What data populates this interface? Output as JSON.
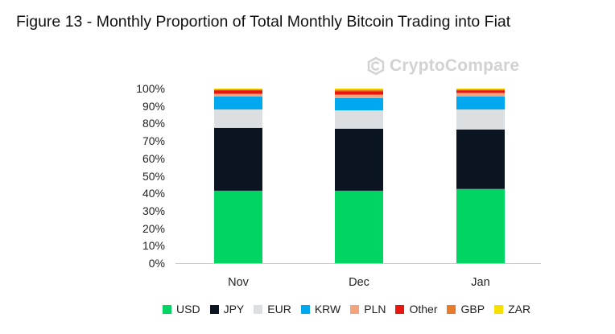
{
  "title": "Figure 13 - Monthly Proportion of Total Monthly Bitcoin Trading into Fiat",
  "watermark": "CryptoCompare",
  "chart_data": {
    "type": "bar",
    "stacked": true,
    "categories": [
      "Nov",
      "Dec",
      "Jan"
    ],
    "series": [
      {
        "name": "USD",
        "color": "#00d563",
        "values": [
          41.5,
          41.5,
          42.5
        ]
      },
      {
        "name": "JPY",
        "color": "#0b1522",
        "values": [
          36.0,
          35.5,
          34.0
        ]
      },
      {
        "name": "EUR",
        "color": "#dcdfe1",
        "values": [
          10.5,
          10.5,
          11.5
        ]
      },
      {
        "name": "KRW",
        "color": "#00a8f0",
        "values": [
          7.5,
          7.0,
          7.5
        ]
      },
      {
        "name": "PLN",
        "color": "#f5a37d",
        "values": [
          1.5,
          2.0,
          2.0
        ]
      },
      {
        "name": "Other",
        "color": "#e8160c",
        "values": [
          2.0,
          2.0,
          1.5
        ]
      },
      {
        "name": "GBP",
        "color": "#e87a2a",
        "values": [
          0.5,
          0.8,
          0.5
        ]
      },
      {
        "name": "ZAR",
        "color": "#f5e000",
        "values": [
          0.5,
          0.7,
          0.5
        ]
      }
    ],
    "yticks": [
      "0%",
      "10%",
      "20%",
      "30%",
      "40%",
      "50%",
      "60%",
      "70%",
      "80%",
      "90%",
      "100%"
    ],
    "ylim": [
      0,
      100
    ],
    "grid": false,
    "legend_position": "bottom"
  }
}
